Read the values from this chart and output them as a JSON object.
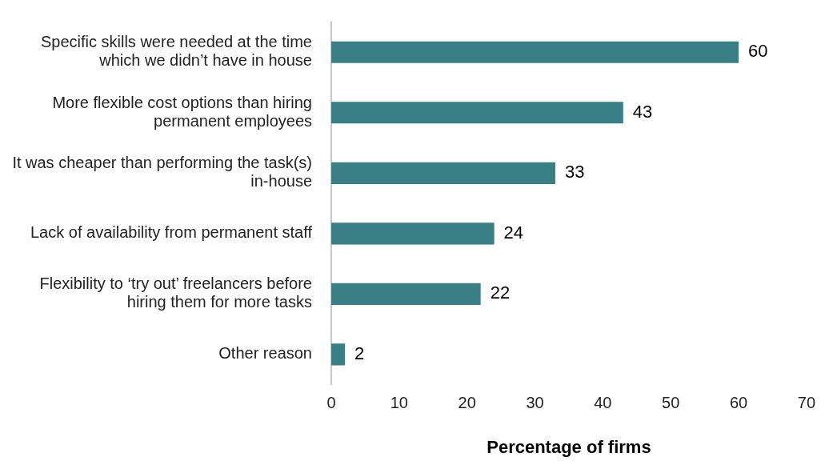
{
  "chart_data": {
    "type": "bar",
    "orientation": "horizontal",
    "categories": [
      "Specific skills were needed at the time which we didn’t have in house",
      "More flexible cost options than hiring permanent employees",
      "It was cheaper than performing the task(s) in-house",
      "Lack of availability from permanent staff",
      "Flexibility to ‘try out’ freelancers before hiring them for more tasks",
      "Other reason"
    ],
    "values": [
      60,
      43,
      33,
      24,
      22,
      2
    ],
    "color": "#3a7f85",
    "xlabel": "Percentage of firms",
    "xlim": [
      0,
      70
    ],
    "xticks": [
      0,
      10,
      20,
      30,
      40,
      50,
      60,
      70
    ],
    "grid": false,
    "legend": false,
    "data_labels": true
  }
}
